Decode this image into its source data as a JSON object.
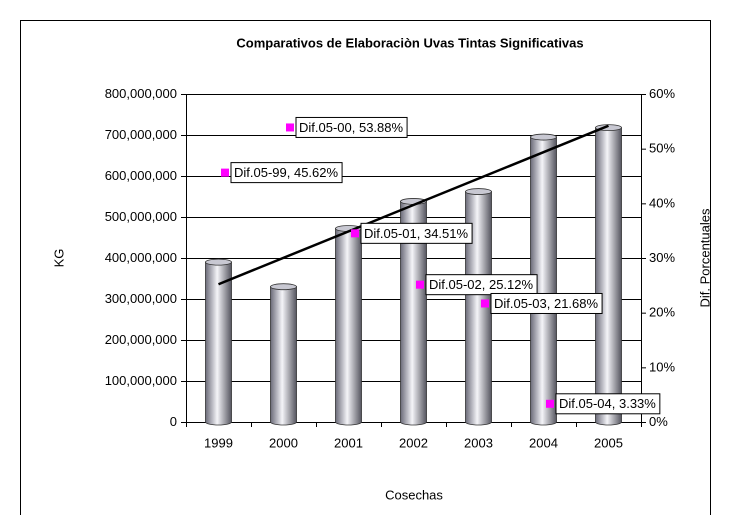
{
  "chart_data": {
    "type": "bar",
    "title": "Comparativos de Elaboraciòn Uvas Tintas Significativas",
    "xlabel": "Cosechas",
    "ylabel": "KG",
    "y2label": "Dif. Porcentuales",
    "categories": [
      "1999",
      "2000",
      "2001",
      "2002",
      "2003",
      "2004",
      "2005"
    ],
    "values": [
      390000000,
      330000000,
      472000000,
      538000000,
      562000000,
      695000000,
      718000000
    ],
    "color": "#9a9aa8",
    "trendline": "linear",
    "trendline_color": "#000000",
    "ylim": [
      0,
      800000000
    ],
    "yticks": [
      0,
      {
        "value": 100000000,
        "label": "100,000,000"
      },
      {
        "value": 200000000,
        "label": "200,000,000"
      },
      {
        "value": 300000000,
        "label": "300,000,000"
      },
      {
        "value": 400000000,
        "label": "400,000,000"
      },
      {
        "value": 500000000,
        "label": "500,000,000"
      },
      {
        "value": 600000000,
        "label": "600,000,000"
      },
      {
        "value": 700000000,
        "label": "700,000,000"
      },
      {
        "value": 800000000,
        "label": "800,000,000"
      }
    ],
    "y2lim": [
      0,
      60
    ],
    "y2ticks": [
      {
        "value": 0,
        "label": "0%"
      },
      {
        "value": 10,
        "label": "10%"
      },
      {
        "value": 20,
        "label": "20%"
      },
      {
        "value": 30,
        "label": "30%"
      },
      {
        "value": 40,
        "label": "40%"
      },
      {
        "value": 50,
        "label": "50%"
      },
      {
        "value": 60,
        "label": "60%"
      }
    ],
    "grid": true,
    "points": {
      "type": "scatter",
      "axis": "y2",
      "color": "#ff00ff",
      "values": [
        45.62,
        53.88,
        34.51,
        25.12,
        21.68,
        3.33
      ],
      "value_labels": [
        "Dif.05-99, 45.62%",
        "Dif.05-00, 53.88%",
        "Dif.05-01, 34.51%",
        "Dif.05-02, 25.12%",
        "Dif.05-03, 21.68%",
        "Dif.05-04, 3.33%"
      ]
    }
  }
}
